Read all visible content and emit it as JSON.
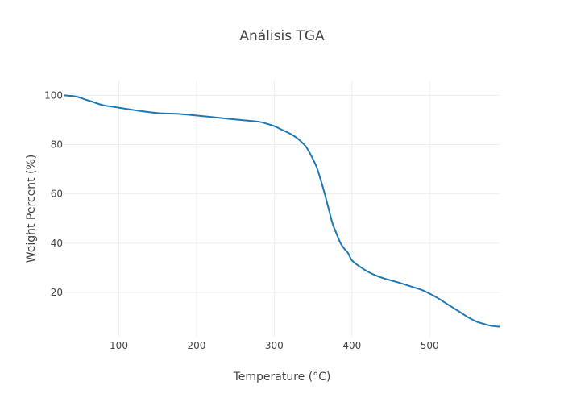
{
  "chart_data": {
    "type": "line",
    "title": "Análisis TGA",
    "xlabel": "Temperature (°C)",
    "ylabel": "Weight Percent (%)",
    "xlim": [
      30,
      590
    ],
    "ylim": [
      2,
      106
    ],
    "xticks": [
      100,
      200,
      300,
      400,
      500
    ],
    "yticks": [
      20,
      40,
      60,
      80,
      100
    ],
    "grid": true,
    "line_color": "#1f77b4",
    "series": [
      {
        "x": [
          30,
          45,
          55,
          65,
          80,
          100,
          120,
          150,
          180,
          210,
          240,
          260,
          280,
          290,
          300,
          310,
          320,
          330,
          340,
          345,
          350,
          355,
          360,
          365,
          370,
          375,
          380,
          385,
          390,
          395,
          400,
          410,
          420,
          430,
          440,
          460,
          480,
          490,
          500,
          510,
          520,
          530,
          540,
          550,
          560,
          570,
          580,
          590
        ],
        "y": [
          100,
          99.5,
          98.5,
          97.5,
          96,
          95,
          94,
          92.8,
          92.4,
          91.5,
          90.5,
          89.9,
          89.3,
          88.5,
          87.5,
          86,
          84.5,
          82.5,
          79.5,
          77,
          74,
          70.5,
          65.5,
          60,
          54,
          48,
          44,
          40.2,
          37.8,
          36,
          33,
          30.5,
          28.5,
          27,
          25.8,
          24,
          22,
          21,
          19.5,
          17.8,
          15.8,
          13.8,
          11.8,
          9.8,
          8.2,
          7.2,
          6.4,
          6.1
        ]
      }
    ]
  }
}
